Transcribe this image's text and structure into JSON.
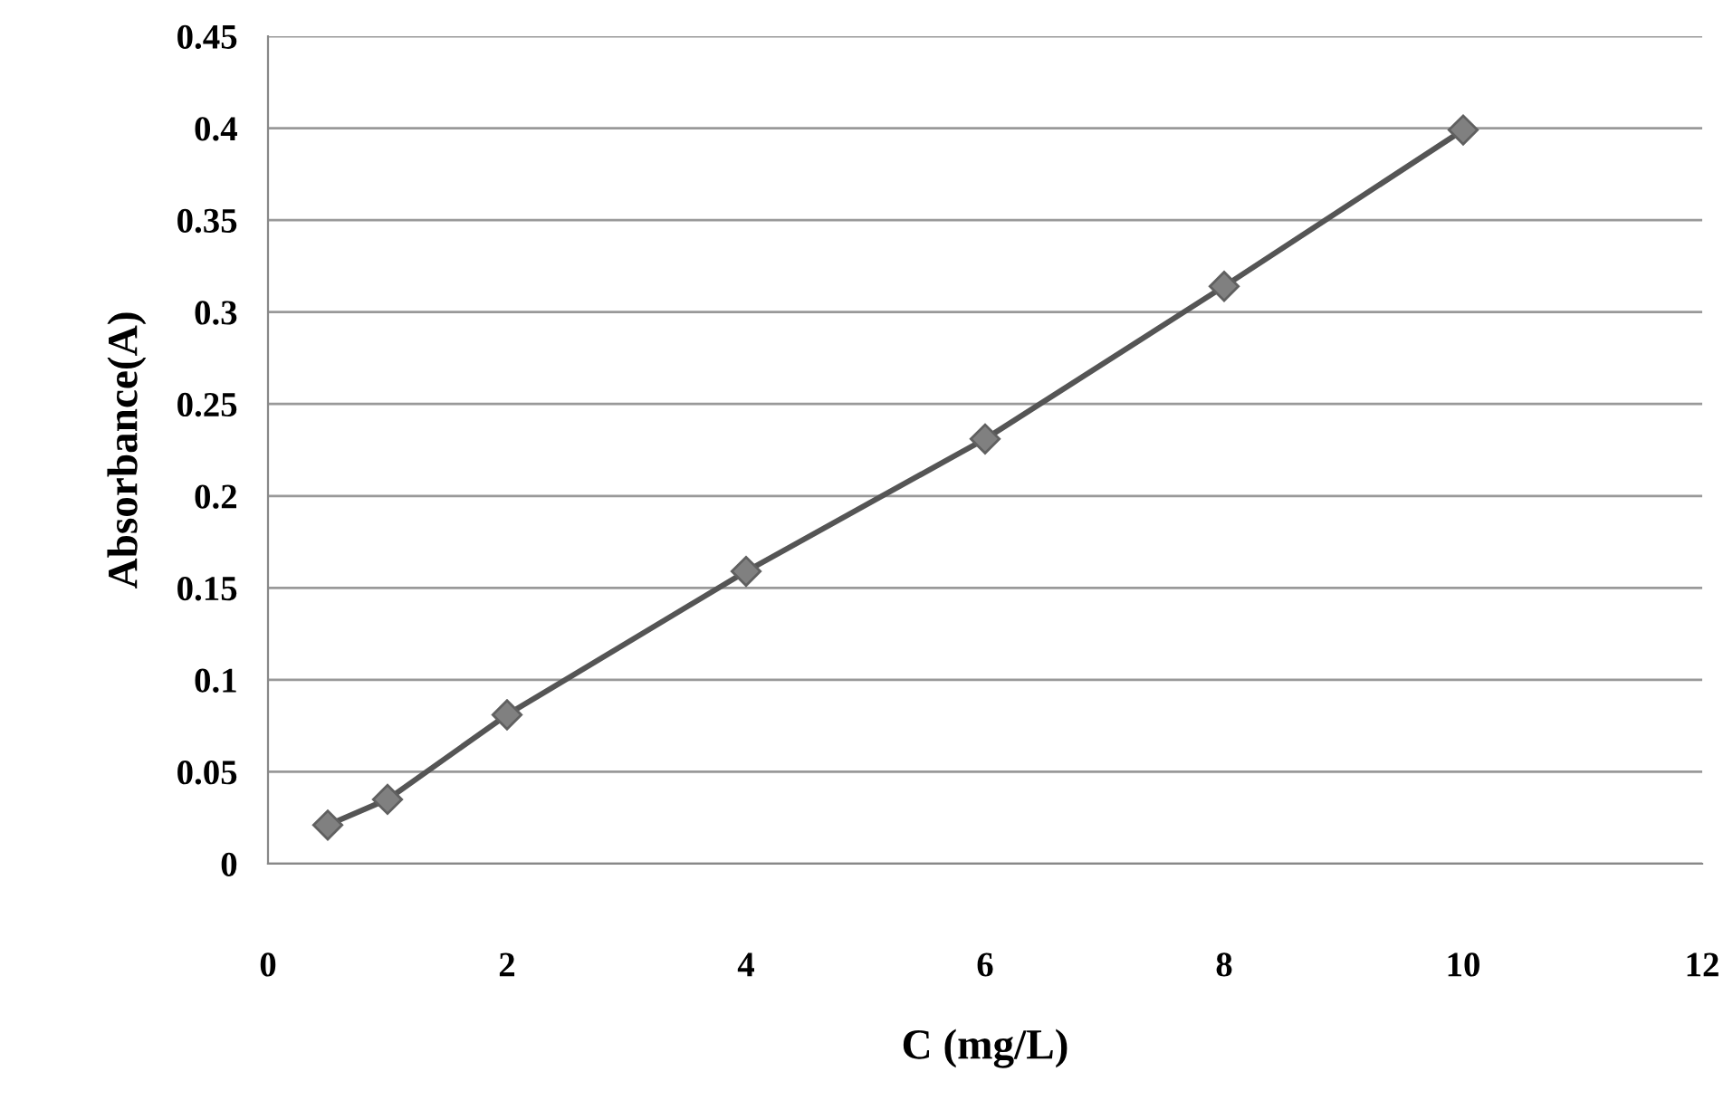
{
  "chart_data": {
    "type": "line",
    "xlabel": "C (mg/L)",
    "ylabel": "Absorbance(A)",
    "x": [
      0.5,
      1,
      2,
      4,
      6,
      8,
      10
    ],
    "series": [
      {
        "color": "#808080",
        "values": [
          0.021,
          0.035,
          0.081,
          0.159,
          0.231,
          0.314,
          0.399
        ]
      }
    ],
    "xlim": [
      0,
      12
    ],
    "xticks": [
      0,
      2,
      4,
      6,
      8,
      10,
      12
    ],
    "ylim": [
      0,
      0.45
    ],
    "yticks": [
      0,
      0.05,
      0.1,
      0.15,
      0.2,
      0.25,
      0.3,
      0.35,
      0.4,
      0.45
    ],
    "grid": "y",
    "marker": "diamond",
    "line_style": "solid",
    "legend": false
  }
}
